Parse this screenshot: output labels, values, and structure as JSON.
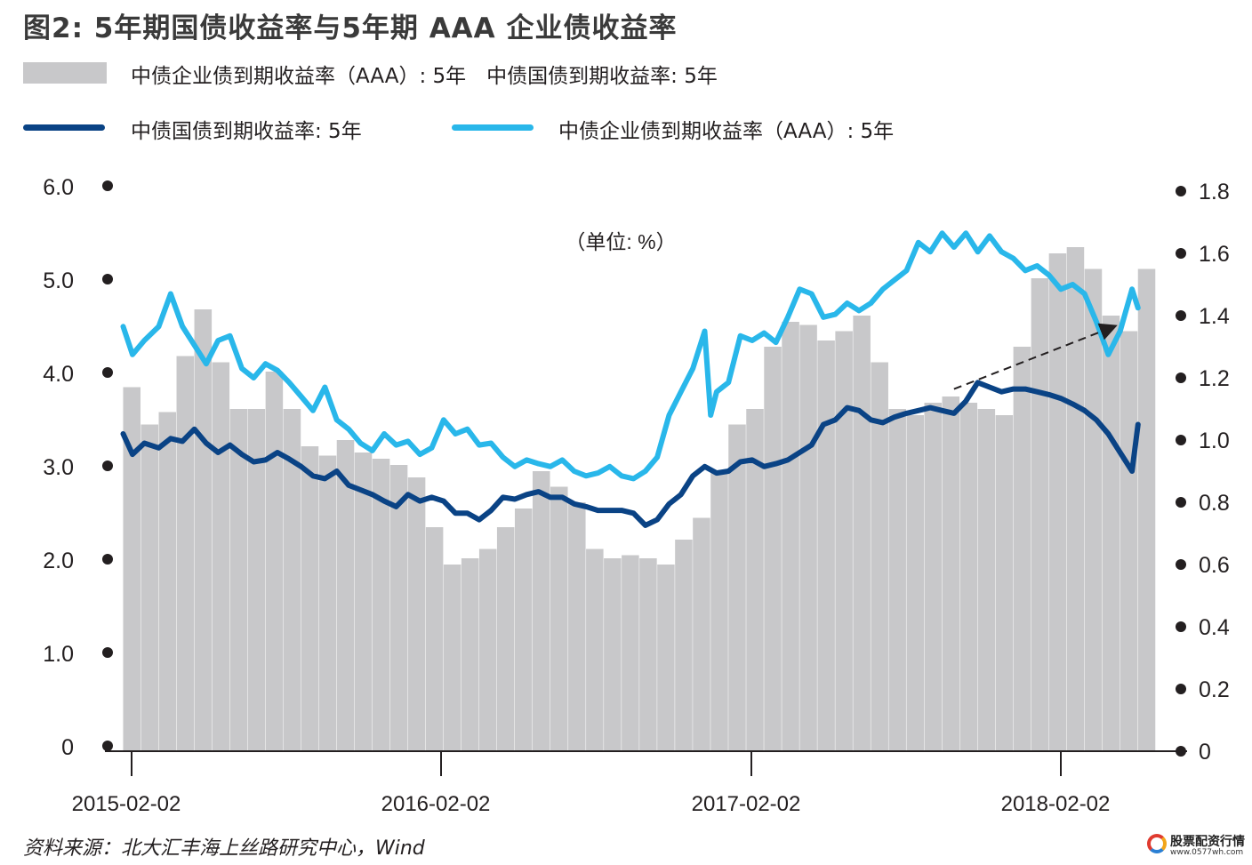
{
  "title": "图2: 5年期国债收益率与5年期 AAA 企业债收益率",
  "legend": {
    "bar_label": "中债企业债到期收益率（AAA）: 5年　中债国债到期收益率: 5年",
    "gov_line_label": "中债国债到期收益率: 5年",
    "corp_line_label": "中债企业债到期收益率（AAA）: 5年"
  },
  "unit_label": "（单位: %）",
  "source": "资料来源：北大汇丰海上丝路研究中心，Wind",
  "watermark": {
    "line1": "股票配资行情",
    "line2": "www.0577wh.com"
  },
  "colors": {
    "bar": "#c8c8ca",
    "gov_line": "#0a4385",
    "corp_line": "#29b7ea",
    "text": "#231f20"
  },
  "chart_data": {
    "type": "bar+line",
    "x_ticks": [
      "2015-02-02",
      "2016-02-02",
      "2017-02-02",
      "2018-02-02"
    ],
    "x_range": [
      "2015-01-20",
      "2018-05-10"
    ],
    "left_axis": {
      "ticks": [
        "0",
        "1.0",
        "2.0",
        "3.0",
        "4.0",
        "5.0",
        "6.0"
      ],
      "range": [
        0,
        6
      ]
    },
    "right_axis": {
      "ticks": [
        "0",
        "0.2",
        "0.4",
        "0.6",
        "0.8",
        "1.0",
        "1.2",
        "1.4",
        "1.6",
        "1.8"
      ],
      "range": [
        0,
        1.8
      ]
    },
    "series": [
      {
        "name": "中债企业债到期收益率（AAA）: 5年　中债国债到期收益率: 5年",
        "type": "bar",
        "axis": "right",
        "dates": [
          "2015-01-23",
          "2015-02-13",
          "2015-03-06",
          "2015-03-27",
          "2015-04-17",
          "2015-05-08",
          "2015-05-29",
          "2015-06-19",
          "2015-07-10",
          "2015-07-31",
          "2015-08-21",
          "2015-09-11",
          "2015-10-02",
          "2015-10-23",
          "2015-11-13",
          "2015-12-04",
          "2015-12-25",
          "2016-01-15",
          "2016-02-05",
          "2016-02-26",
          "2016-03-18",
          "2016-04-08",
          "2016-04-29",
          "2016-05-20",
          "2016-06-10",
          "2016-07-01",
          "2016-07-22",
          "2016-08-12",
          "2016-09-02",
          "2016-09-23",
          "2016-10-14",
          "2016-11-04",
          "2016-11-25",
          "2016-12-16",
          "2017-01-06",
          "2017-01-27",
          "2017-02-17",
          "2017-03-10",
          "2017-03-31",
          "2017-04-21",
          "2017-05-12",
          "2017-06-02",
          "2017-06-23",
          "2017-07-14",
          "2017-08-04",
          "2017-08-25",
          "2017-09-15",
          "2017-10-06",
          "2017-10-27",
          "2017-11-17",
          "2017-12-08",
          "2017-12-29",
          "2018-01-19",
          "2018-02-09",
          "2018-03-02",
          "2018-03-23",
          "2018-04-13",
          "2018-05-04"
        ],
        "values": [
          1.17,
          1.05,
          1.09,
          1.27,
          1.42,
          1.25,
          1.1,
          1.1,
          1.22,
          1.1,
          0.98,
          0.95,
          1.0,
          0.96,
          0.94,
          0.92,
          0.88,
          0.72,
          0.6,
          0.62,
          0.65,
          0.72,
          0.78,
          0.9,
          0.85,
          0.8,
          0.65,
          0.62,
          0.63,
          0.62,
          0.6,
          0.68,
          0.75,
          0.9,
          1.05,
          1.1,
          1.3,
          1.38,
          1.37,
          1.32,
          1.35,
          1.4,
          1.25,
          1.1,
          1.08,
          1.12,
          1.14,
          1.12,
          1.1,
          1.08,
          1.3,
          1.52,
          1.6,
          1.62,
          1.55,
          1.4,
          1.35,
          1.55
        ]
      },
      {
        "name": "中债国债到期收益率: 5年",
        "type": "line",
        "axis": "left",
        "dates": [
          "2015-01-23",
          "2015-02-03",
          "2015-02-17",
          "2015-03-06",
          "2015-03-20",
          "2015-04-03",
          "2015-04-17",
          "2015-05-01",
          "2015-05-15",
          "2015-05-29",
          "2015-06-12",
          "2015-06-26",
          "2015-07-10",
          "2015-07-24",
          "2015-08-07",
          "2015-08-21",
          "2015-09-04",
          "2015-09-18",
          "2015-10-02",
          "2015-10-16",
          "2015-10-30",
          "2015-11-13",
          "2015-11-27",
          "2015-12-11",
          "2015-12-25",
          "2016-01-08",
          "2016-01-22",
          "2016-02-05",
          "2016-02-19",
          "2016-03-04",
          "2016-03-18",
          "2016-04-01",
          "2016-04-15",
          "2016-04-29",
          "2016-05-13",
          "2016-05-27",
          "2016-06-10",
          "2016-06-24",
          "2016-07-08",
          "2016-07-22",
          "2016-08-05",
          "2016-08-19",
          "2016-09-02",
          "2016-09-16",
          "2016-09-30",
          "2016-10-14",
          "2016-10-28",
          "2016-11-11",
          "2016-11-25",
          "2016-12-09",
          "2016-12-23",
          "2017-01-06",
          "2017-01-20",
          "2017-02-03",
          "2017-02-17",
          "2017-03-03",
          "2017-03-17",
          "2017-03-31",
          "2017-04-14",
          "2017-04-28",
          "2017-05-12",
          "2017-05-26",
          "2017-06-09",
          "2017-06-23",
          "2017-07-07",
          "2017-07-21",
          "2017-08-04",
          "2017-08-18",
          "2017-09-01",
          "2017-09-15",
          "2017-09-29",
          "2017-10-13",
          "2017-10-27",
          "2017-11-10",
          "2017-11-24",
          "2017-12-08",
          "2017-12-22",
          "2018-01-05",
          "2018-01-19",
          "2018-02-02",
          "2018-02-16",
          "2018-03-02",
          "2018-03-16",
          "2018-03-30",
          "2018-04-13",
          "2018-04-27",
          "2018-05-04"
        ],
        "values": [
          3.4,
          3.18,
          3.3,
          3.25,
          3.35,
          3.32,
          3.45,
          3.3,
          3.2,
          3.28,
          3.18,
          3.1,
          3.12,
          3.2,
          3.13,
          3.05,
          2.95,
          2.92,
          3.0,
          2.85,
          2.8,
          2.75,
          2.68,
          2.62,
          2.75,
          2.68,
          2.72,
          2.68,
          2.55,
          2.55,
          2.48,
          2.58,
          2.72,
          2.7,
          2.75,
          2.78,
          2.72,
          2.72,
          2.65,
          2.62,
          2.58,
          2.58,
          2.58,
          2.55,
          2.42,
          2.48,
          2.65,
          2.75,
          2.95,
          3.05,
          2.98,
          3.0,
          3.1,
          3.12,
          3.05,
          3.08,
          3.12,
          3.2,
          3.28,
          3.5,
          3.55,
          3.68,
          3.65,
          3.55,
          3.52,
          3.58,
          3.62,
          3.65,
          3.68,
          3.65,
          3.62,
          3.75,
          3.95,
          3.9,
          3.85,
          3.88,
          3.88,
          3.85,
          3.82,
          3.78,
          3.72,
          3.65,
          3.55,
          3.4,
          3.2,
          3.0,
          3.5
        ]
      },
      {
        "name": "中债企业债到期收益率（AAA）: 5年",
        "type": "line",
        "axis": "left",
        "dates": [
          "2015-01-23",
          "2015-02-03",
          "2015-02-17",
          "2015-03-06",
          "2015-03-20",
          "2015-04-03",
          "2015-04-17",
          "2015-05-01",
          "2015-05-15",
          "2015-05-29",
          "2015-06-12",
          "2015-06-26",
          "2015-07-10",
          "2015-07-24",
          "2015-08-07",
          "2015-08-21",
          "2015-09-04",
          "2015-09-18",
          "2015-10-02",
          "2015-10-16",
          "2015-10-30",
          "2015-11-13",
          "2015-11-27",
          "2015-12-11",
          "2015-12-25",
          "2016-01-08",
          "2016-01-22",
          "2016-02-05",
          "2016-02-19",
          "2016-03-04",
          "2016-03-18",
          "2016-04-01",
          "2016-04-15",
          "2016-04-29",
          "2016-05-13",
          "2016-05-27",
          "2016-06-10",
          "2016-06-24",
          "2016-07-08",
          "2016-07-22",
          "2016-08-05",
          "2016-08-19",
          "2016-09-02",
          "2016-09-16",
          "2016-09-30",
          "2016-10-14",
          "2016-10-28",
          "2016-11-11",
          "2016-11-25",
          "2016-12-09",
          "2016-12-16",
          "2016-12-23",
          "2017-01-06",
          "2017-01-20",
          "2017-02-03",
          "2017-02-17",
          "2017-03-03",
          "2017-03-17",
          "2017-03-31",
          "2017-04-14",
          "2017-04-28",
          "2017-05-12",
          "2017-05-26",
          "2017-06-09",
          "2017-06-23",
          "2017-07-07",
          "2017-07-21",
          "2017-08-04",
          "2017-08-18",
          "2017-09-01",
          "2017-09-15",
          "2017-09-29",
          "2017-10-13",
          "2017-10-27",
          "2017-11-10",
          "2017-11-24",
          "2017-12-08",
          "2017-12-22",
          "2018-01-05",
          "2018-01-19",
          "2018-02-02",
          "2018-02-16",
          "2018-03-02",
          "2018-03-16",
          "2018-03-30",
          "2018-04-13",
          "2018-04-27",
          "2018-05-04"
        ],
        "values": [
          4.55,
          4.25,
          4.4,
          4.55,
          4.9,
          4.55,
          4.35,
          4.15,
          4.4,
          4.45,
          4.1,
          4.0,
          4.15,
          4.08,
          3.95,
          3.8,
          3.65,
          3.9,
          3.55,
          3.45,
          3.3,
          3.22,
          3.4,
          3.28,
          3.32,
          3.18,
          3.25,
          3.55,
          3.4,
          3.45,
          3.28,
          3.3,
          3.15,
          3.05,
          3.12,
          3.08,
          3.05,
          3.12,
          3.0,
          2.95,
          2.98,
          3.05,
          2.95,
          2.92,
          3.0,
          3.15,
          3.6,
          3.85,
          4.1,
          4.5,
          3.6,
          3.85,
          3.95,
          4.45,
          4.4,
          4.48,
          4.38,
          4.65,
          4.95,
          4.9,
          4.65,
          4.68,
          4.8,
          4.72,
          4.8,
          4.95,
          5.05,
          5.15,
          5.45,
          5.35,
          5.55,
          5.4,
          5.55,
          5.35,
          5.52,
          5.35,
          5.28,
          5.15,
          5.2,
          5.1,
          4.95,
          5.0,
          4.9,
          4.6,
          4.25,
          4.5,
          4.95,
          4.75
        ]
      }
    ],
    "annotation": {
      "type": "arrow",
      "from": [
        "2017-09-29",
        3.88
      ],
      "to": [
        "2018-04-06",
        4.55
      ]
    }
  }
}
